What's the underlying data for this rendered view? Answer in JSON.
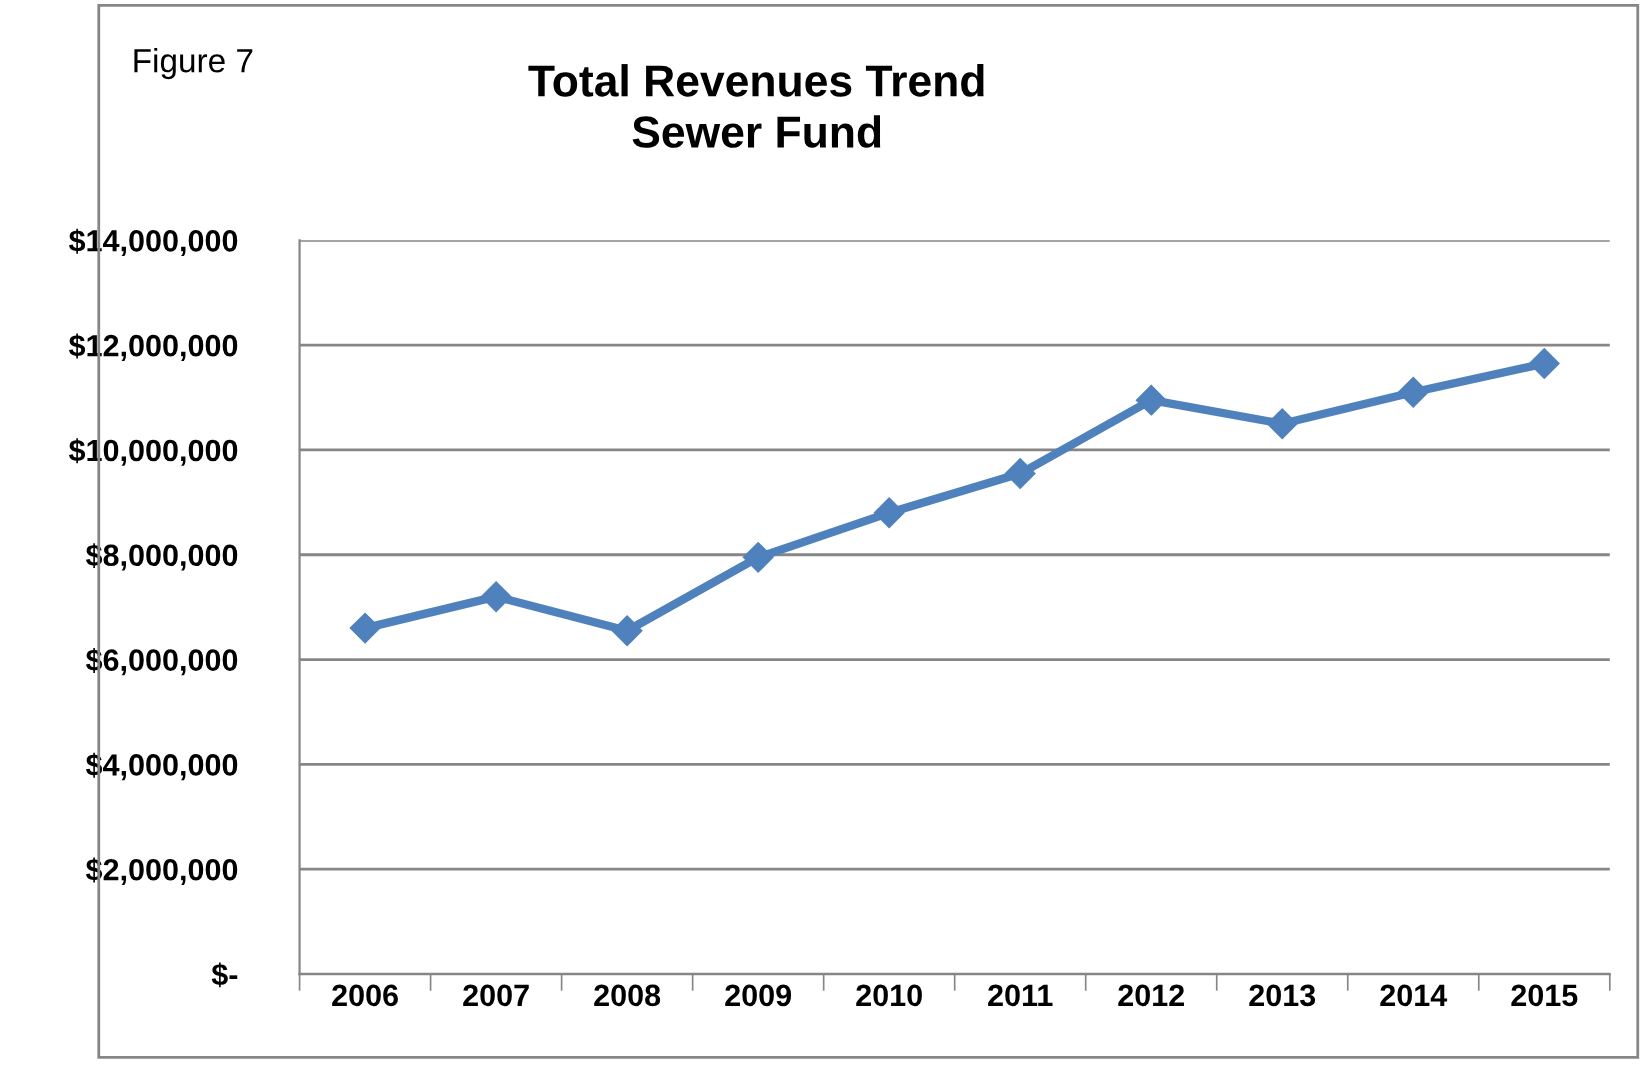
{
  "chart_data": {
    "type": "line",
    "title": "Total Revenues Trend\nSewer Fund",
    "annotations": [
      "Figure 7"
    ],
    "categories": [
      "2006",
      "2007",
      "2008",
      "2009",
      "2010",
      "2011",
      "2012",
      "2013",
      "2014",
      "2015"
    ],
    "series": [
      {
        "color": "#4f81bd",
        "values": [
          6600000,
          7200000,
          6550000,
          7950000,
          8800000,
          9550000,
          10950000,
          10500000,
          11100000,
          11650000
        ]
      }
    ],
    "ylim": [
      0,
      14000000
    ],
    "yticks": [
      {
        "value": 0,
        "label": "$-"
      },
      {
        "value": 2000000,
        "label": "$2,000,000"
      },
      {
        "value": 4000000,
        "label": "$4,000,000"
      },
      {
        "value": 6000000,
        "label": "$6,000,000"
      },
      {
        "value": 8000000,
        "label": "$8,000,000"
      },
      {
        "value": 10000000,
        "label": "$10,000,000"
      },
      {
        "value": 12000000,
        "label": "$12,000,000"
      },
      {
        "value": 14000000,
        "label": "$14,000,000"
      }
    ],
    "grid": "y",
    "marker": "diamond",
    "line_style": "solid",
    "legend": false
  }
}
